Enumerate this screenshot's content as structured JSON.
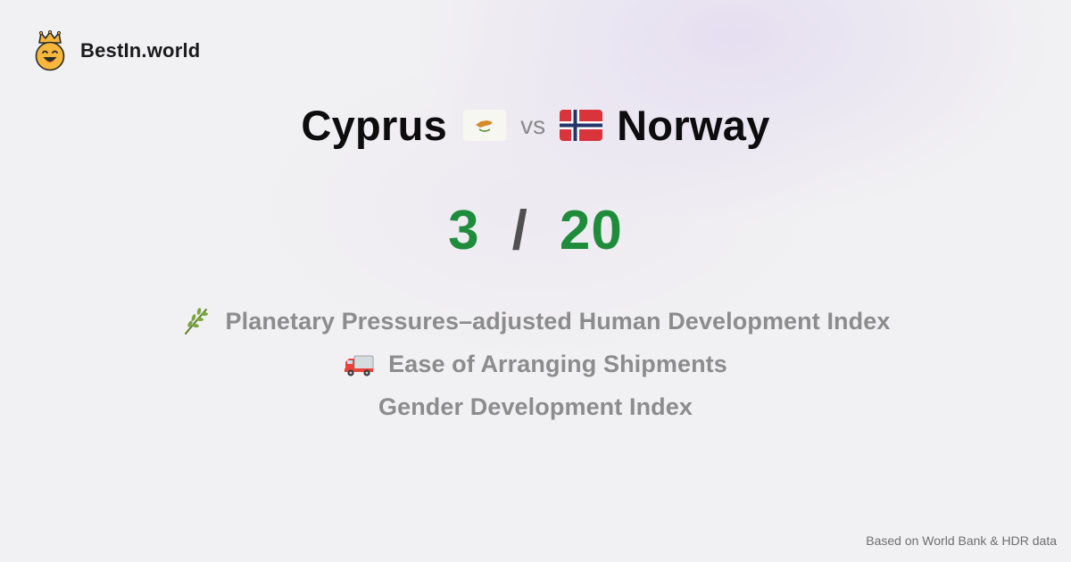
{
  "brand": {
    "name": "BestIn.world",
    "logo_icon": "crowned-smiley-icon"
  },
  "comparison": {
    "left_country": "Cyprus",
    "left_flag": "cyprus-flag-icon",
    "vs_label": "vs",
    "right_country": "Norway",
    "right_flag": "norway-flag-icon",
    "left_score": "3",
    "separator": "/",
    "right_score": "20"
  },
  "metrics": [
    {
      "icon": "leaf-icon",
      "label": "Planetary Pressures–adjusted Human Development Index"
    },
    {
      "icon": "truck-icon",
      "label": "Ease of Arranging Shipments"
    },
    {
      "icon": "",
      "label": "Gender Development Index"
    }
  ],
  "footer": {
    "source": "Based on World Bank & HDR data"
  },
  "colors": {
    "score": "#1f8c3b",
    "separator": "#505050",
    "metric_text": "#8c8c8c",
    "background": "#f1f1f3"
  }
}
